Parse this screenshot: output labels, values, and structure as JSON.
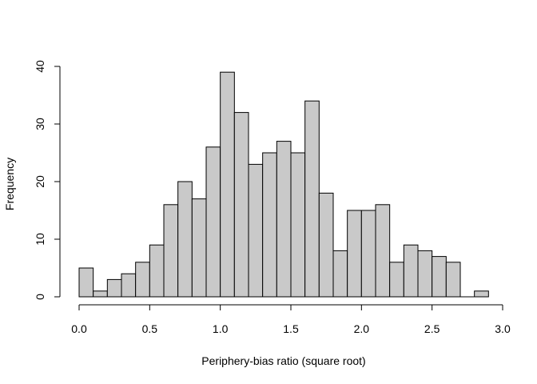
{
  "chart_data": {
    "type": "bar",
    "subtype": "histogram",
    "title": "",
    "xlabel": "Periphery-bias ratio (square root)",
    "ylabel": "Frequency",
    "xlim": [
      0,
      3.0
    ],
    "ylim": [
      0,
      40
    ],
    "bin_width": 0.1,
    "bins": [
      {
        "start": 0.0,
        "end": 0.1,
        "count": 5
      },
      {
        "start": 0.1,
        "end": 0.2,
        "count": 1
      },
      {
        "start": 0.2,
        "end": 0.3,
        "count": 3
      },
      {
        "start": 0.3,
        "end": 0.4,
        "count": 4
      },
      {
        "start": 0.4,
        "end": 0.5,
        "count": 6
      },
      {
        "start": 0.5,
        "end": 0.6,
        "count": 9
      },
      {
        "start": 0.6,
        "end": 0.7,
        "count": 16
      },
      {
        "start": 0.7,
        "end": 0.8,
        "count": 20
      },
      {
        "start": 0.8,
        "end": 0.9,
        "count": 17
      },
      {
        "start": 0.9,
        "end": 1.0,
        "count": 26
      },
      {
        "start": 1.0,
        "end": 1.1,
        "count": 39
      },
      {
        "start": 1.1,
        "end": 1.2,
        "count": 32
      },
      {
        "start": 1.2,
        "end": 1.3,
        "count": 23
      },
      {
        "start": 1.3,
        "end": 1.4,
        "count": 25
      },
      {
        "start": 1.4,
        "end": 1.5,
        "count": 27
      },
      {
        "start": 1.5,
        "end": 1.6,
        "count": 25
      },
      {
        "start": 1.6,
        "end": 1.7,
        "count": 34
      },
      {
        "start": 1.7,
        "end": 1.8,
        "count": 18
      },
      {
        "start": 1.8,
        "end": 1.9,
        "count": 8
      },
      {
        "start": 1.9,
        "end": 2.0,
        "count": 15
      },
      {
        "start": 2.0,
        "end": 2.1,
        "count": 15
      },
      {
        "start": 2.1,
        "end": 2.2,
        "count": 16
      },
      {
        "start": 2.2,
        "end": 2.3,
        "count": 6
      },
      {
        "start": 2.3,
        "end": 2.4,
        "count": 9
      },
      {
        "start": 2.4,
        "end": 2.5,
        "count": 8
      },
      {
        "start": 2.5,
        "end": 2.6,
        "count": 7
      },
      {
        "start": 2.6,
        "end": 2.7,
        "count": 6
      },
      {
        "start": 2.7,
        "end": 2.8,
        "count": 0
      },
      {
        "start": 2.8,
        "end": 2.9,
        "count": 1
      }
    ],
    "x_ticks": [
      {
        "value": 0.0,
        "label": "0.0"
      },
      {
        "value": 0.5,
        "label": "0.5"
      },
      {
        "value": 1.0,
        "label": "1.0"
      },
      {
        "value": 1.5,
        "label": "1.5"
      },
      {
        "value": 2.0,
        "label": "2.0"
      },
      {
        "value": 2.5,
        "label": "2.5"
      },
      {
        "value": 3.0,
        "label": "3.0"
      }
    ],
    "y_ticks": [
      {
        "value": 0,
        "label": "0"
      },
      {
        "value": 10,
        "label": "10"
      },
      {
        "value": 20,
        "label": "20"
      },
      {
        "value": 30,
        "label": "30"
      },
      {
        "value": 40,
        "label": "40"
      }
    ],
    "grid": false,
    "legend": "none",
    "bar_fill": "#c9c9c9",
    "bar_stroke": "#000000"
  }
}
